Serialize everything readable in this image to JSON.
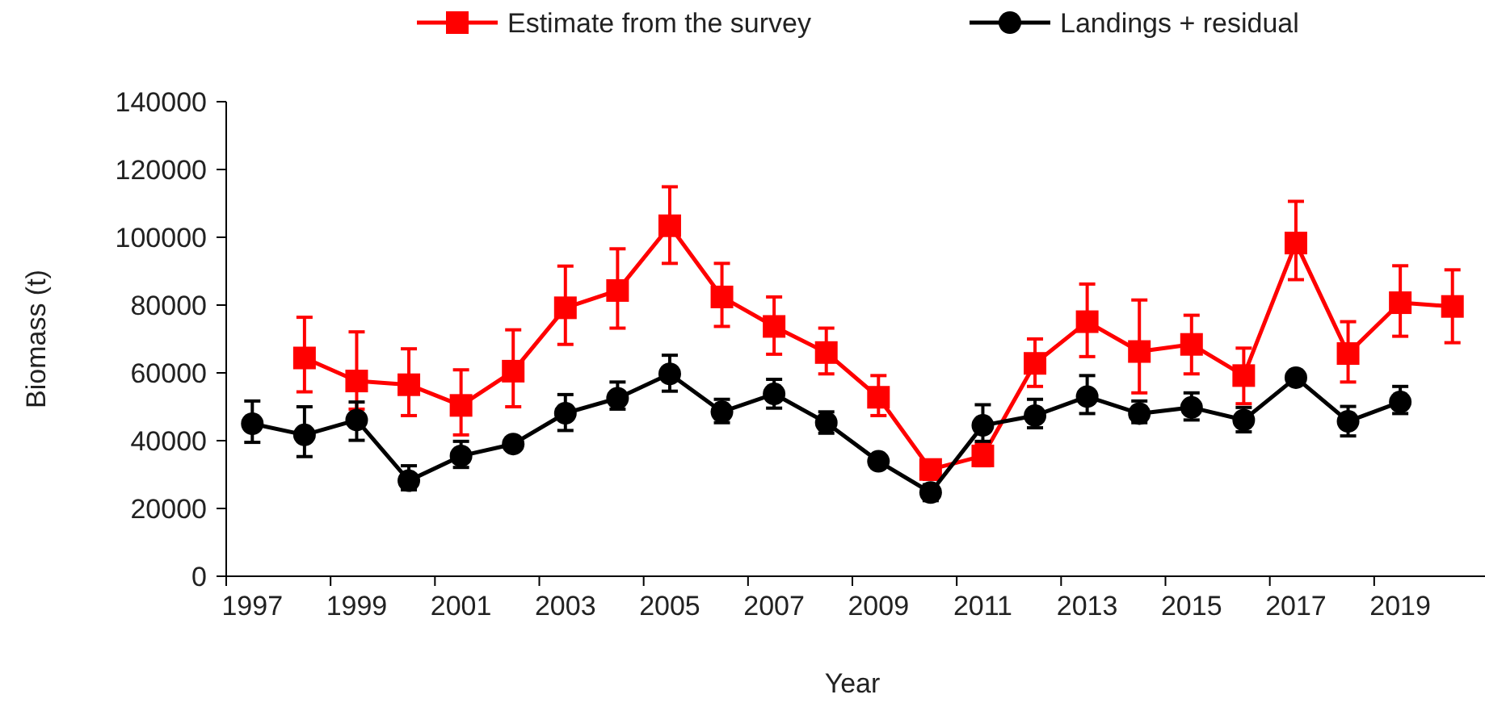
{
  "chart_data": {
    "type": "line",
    "xlabel": "Year",
    "ylabel": "Biomass (t)",
    "categories": [
      "1997",
      null,
      "1999",
      null,
      "2001",
      null,
      "2003",
      null,
      "2005",
      null,
      "2007",
      null,
      "2009",
      null,
      "2011",
      null,
      "2013",
      null,
      "2015",
      null,
      "2017",
      null,
      "2019",
      null
    ],
    "ylim": [
      0,
      140000
    ],
    "yticks": [
      0,
      20000,
      40000,
      60000,
      80000,
      100000,
      120000,
      140000
    ],
    "grid": false,
    "legend": "top",
    "line_style": "solid",
    "series": [
      {
        "name": "Estimate from the survey",
        "color": "#ff0000",
        "marker": "square",
        "values": [
          null,
          64400,
          57600,
          56500,
          50400,
          60500,
          79200,
          84300,
          103400,
          82400,
          73700,
          66000,
          52800,
          31500,
          35500,
          62800,
          75100,
          66300,
          68400,
          59200,
          98300,
          65700,
          80700,
          79600
        ],
        "errors": [
          null,
          [
            54400,
            76400
          ],
          [
            49300,
            72100
          ],
          [
            47400,
            67100
          ],
          [
            41700,
            60900
          ],
          [
            50000,
            72700
          ],
          [
            68400,
            91500
          ],
          [
            73200,
            96600
          ],
          [
            92300,
            114900
          ],
          [
            73700,
            92300
          ],
          [
            65500,
            82400
          ],
          [
            59700,
            73200
          ],
          [
            47400,
            59200
          ],
          [
            28600,
            34200
          ],
          [
            32600,
            39000
          ],
          [
            56000,
            70000
          ],
          [
            64800,
            86200
          ],
          [
            54100,
            81500
          ],
          [
            59700,
            77000
          ],
          [
            50900,
            67300
          ],
          [
            87500,
            110600
          ],
          [
            57300,
            75100
          ],
          [
            70800,
            91600
          ],
          [
            68900,
            90400
          ]
        ]
      },
      {
        "name": "Landings + residual",
        "color": "#000000",
        "marker": "circle",
        "values": [
          45000,
          41700,
          46100,
          28200,
          35500,
          39000,
          48100,
          52500,
          59700,
          48500,
          53800,
          45300,
          33900,
          24700,
          44500,
          47400,
          53000,
          48000,
          49800,
          46100,
          58600,
          45700,
          51400,
          null
        ],
        "errors": [
          [
            39500,
            51700
          ],
          [
            35300,
            50000
          ],
          [
            40100,
            51400
          ],
          [
            25500,
            32600
          ],
          [
            32100,
            39800
          ],
          null,
          [
            43000,
            53600
          ],
          [
            49300,
            57300
          ],
          [
            54600,
            65200
          ],
          [
            45300,
            52200
          ],
          [
            49600,
            58100
          ],
          [
            42200,
            48500
          ],
          null,
          [
            22300,
            27000
          ],
          [
            39800,
            50600
          ],
          [
            43800,
            52200
          ],
          [
            48000,
            59200
          ],
          [
            45300,
            51700
          ],
          [
            46100,
            54100
          ],
          [
            42600,
            49800
          ],
          null,
          [
            41400,
            50100
          ],
          [
            48000,
            56000
          ],
          null
        ]
      }
    ]
  }
}
